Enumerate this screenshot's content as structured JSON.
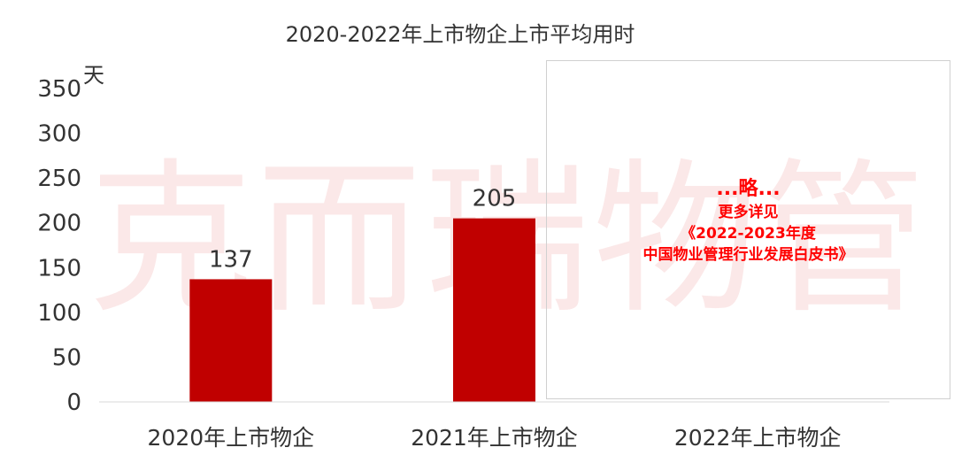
{
  "chart_data": {
    "type": "bar",
    "title": "2020-2022年上市物企上市平均用时",
    "ylabel": "天",
    "xlabel": "",
    "categories": [
      "2020年上市物企",
      "2021年上市物企",
      "2022年上市物企"
    ],
    "values": [
      137,
      205,
      null
    ],
    "data_labels": [
      "137",
      "205",
      ""
    ],
    "ylim": [
      0,
      350
    ],
    "yticks": [
      0,
      50,
      100,
      150,
      200,
      250,
      300,
      350
    ],
    "grid": false,
    "bar_color": "#c00000"
  },
  "annotation": {
    "line1": "...略...",
    "line2": "更多详见",
    "line3": "《2022-2023年度",
    "line4": "中国物业管理行业发展白皮书》",
    "color": "#ff0000"
  },
  "watermark": "克而瑞物管"
}
